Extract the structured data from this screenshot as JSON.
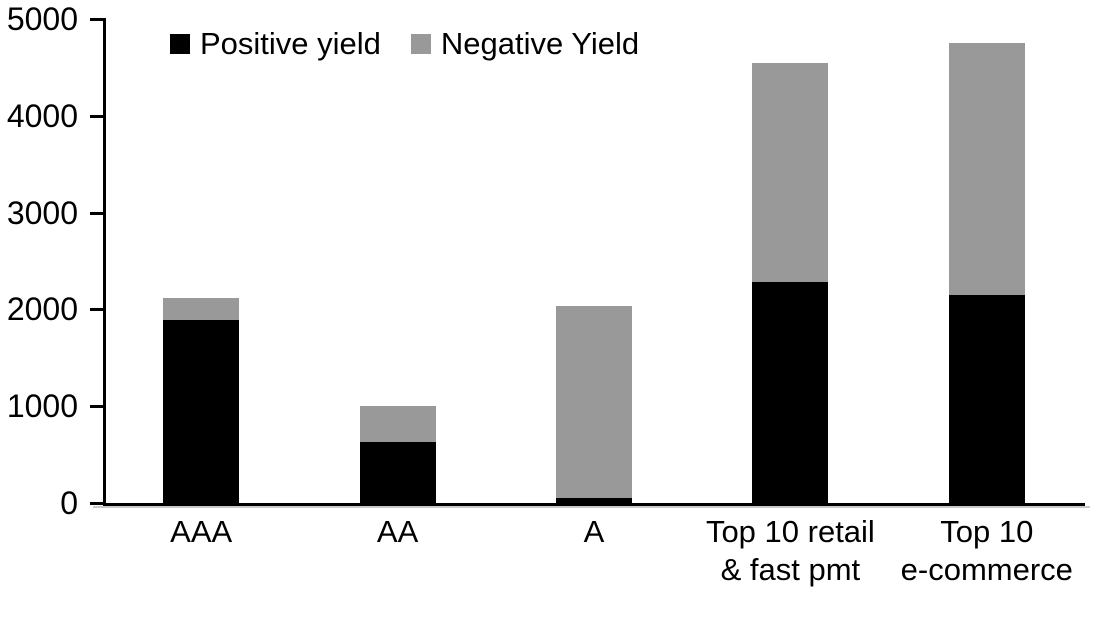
{
  "chart_data": {
    "type": "bar",
    "stacked": true,
    "title": "",
    "categories": [
      "AAA",
      "AA",
      "A",
      "Top 10 retail\n& fast pmt",
      "Top 10\ne-commerce"
    ],
    "series": [
      {
        "name": "Positive yield",
        "color": "#000000",
        "values": [
          1890,
          630,
          50,
          2280,
          2150
        ]
      },
      {
        "name": "Negative Yield",
        "color": "#999999",
        "values": [
          230,
          370,
          1980,
          2270,
          2600
        ]
      }
    ],
    "totals": [
      2120,
      1000,
      2030,
      4550,
      4750
    ],
    "xlabel": "",
    "ylabel": "",
    "ylim": [
      0,
      5000
    ],
    "yticks": [
      0,
      1000,
      2000,
      3000,
      4000,
      5000
    ],
    "grid": false,
    "legend_position": "top-inside",
    "axis_color": "#000000",
    "background_color": "#ffffff"
  }
}
